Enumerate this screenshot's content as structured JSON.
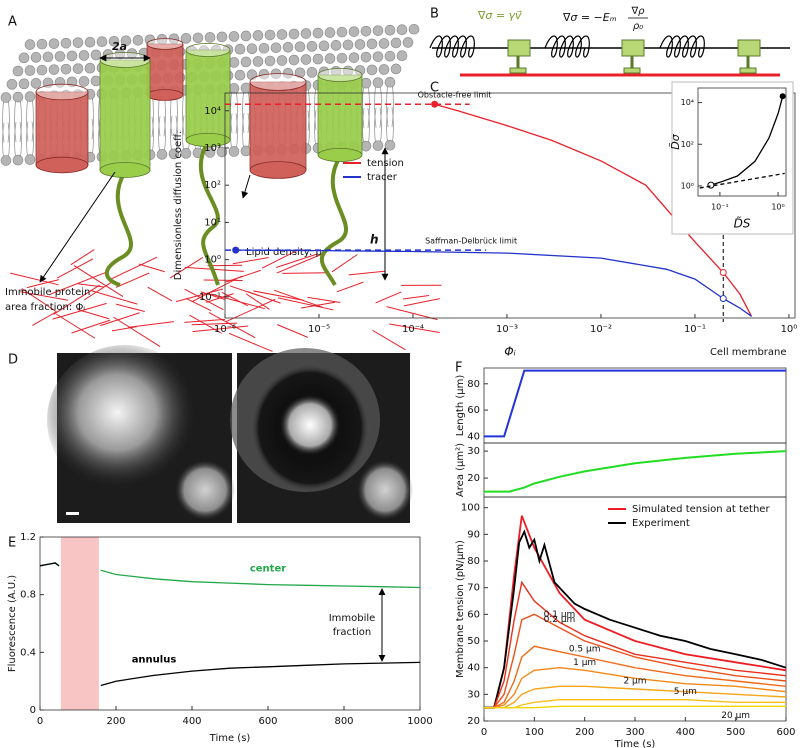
{
  "panels": {
    "A": {
      "label": "A",
      "width_label": "2a",
      "height_label": "h",
      "lipid_label": "Lipid density: ρ",
      "protein_label": [
        "Immobile protein",
        "area fraction: Φᵢ"
      ]
    },
    "B": {
      "label": "B",
      "eq1": "∇σ = γv⃗",
      "eq2_lhs": "∇σ = −Eₘ",
      "eq2_num": "∇ρ",
      "eq2_den": "ρ₀"
    },
    "C": {
      "label": "C"
    },
    "D": {
      "label": "D"
    },
    "E": {
      "label": "E"
    },
    "F": {
      "label": "F"
    }
  },
  "chart_data": [
    {
      "type": "line",
      "xscale": "log",
      "yscale": "log",
      "xlabel": "Φᵢ",
      "ylabel": "Dimensionless diffusion coeff.",
      "xlim": [
        1e-06,
        1.16
      ],
      "ylim": [
        0.027,
        30000
      ],
      "xticks": [
        {
          "value": 1e-06,
          "label": "10⁻⁶"
        },
        {
          "value": 1e-05,
          "label": "10⁻⁵"
        },
        {
          "value": 0.0001,
          "label": "10⁻⁴"
        },
        {
          "value": 0.001,
          "label": "10⁻³"
        },
        {
          "value": 0.01,
          "label": "10⁻²"
        },
        {
          "value": 0.1,
          "label": "10⁻¹"
        },
        {
          "value": 1,
          "label": "10⁰"
        }
      ],
      "yticks": [
        {
          "value": 0.1,
          "label": "10⁻¹"
        },
        {
          "value": 1,
          "label": "10⁰"
        },
        {
          "value": 10,
          "label": "10¹"
        },
        {
          "value": 100,
          "label": "10²"
        },
        {
          "value": 1000,
          "label": "10³"
        },
        {
          "value": 10000,
          "label": "10⁴"
        }
      ],
      "legend": "center-left",
      "series": [
        {
          "name": "tension",
          "color": "#e8202a",
          "x": [
            0.00017,
            0.0003,
            0.001,
            0.003,
            0.01,
            0.03,
            0.1,
            0.2,
            0.3,
            0.4
          ],
          "values": [
            15000,
            10000,
            4000,
            1600,
            450,
            100,
            3,
            0.45,
            0.12,
            0.03
          ]
        },
        {
          "name": "tracer",
          "color": "#2233cc",
          "x": [
            1.3e-06,
            1e-05,
            0.0001,
            0.001,
            0.01,
            0.05,
            0.1,
            0.2,
            0.3,
            0.4
          ],
          "values": [
            1.8,
            1.75,
            1.65,
            1.5,
            1.1,
            0.55,
            0.3,
            0.09,
            0.05,
            0.03
          ]
        }
      ],
      "reference_lines": [
        {
          "text": "Obstacle-free limit",
          "y": 15000,
          "x": [
            1e-06,
            0.0004
          ],
          "color": "#e8202a"
        },
        {
          "text": "Saffman-Delbrück limit",
          "y": 1.8,
          "x": [
            1e-06,
            0.0006
          ],
          "color": "#2233cc"
        }
      ],
      "vline": {
        "text": "Cell membrane",
        "x": 0.2
      }
    },
    {
      "type": "line",
      "xscale": "log",
      "yscale": "log",
      "xlabel": "D̃S",
      "ylabel": "D̃σ",
      "xlim": [
        0.042,
        1.37
      ],
      "ylim": [
        0.33,
        50000
      ],
      "xticks": [
        {
          "value": 0.1,
          "label": "10⁻¹"
        },
        {
          "value": 1,
          "label": "10⁰"
        }
      ],
      "yticks": [
        {
          "value": 1,
          "label": "10⁰"
        },
        {
          "value": 100,
          "label": "10²"
        },
        {
          "value": 10000,
          "label": "10⁴"
        }
      ],
      "series": [
        {
          "color": "#000000",
          "x": [
            0.07,
            0.1,
            0.2,
            0.4,
            0.7,
            1.0,
            1.2
          ],
          "values": [
            1.1,
            1.5,
            3,
            15,
            200,
            3000,
            20000
          ]
        },
        {
          "color": "#000000",
          "dashed": true,
          "x": [
            0.045,
            1.3
          ],
          "values": [
            0.8,
            4
          ]
        }
      ]
    },
    {
      "type": "line",
      "xlabel": "Time (s)",
      "ylabel": "Fluorescence (A.U.)",
      "xlim": [
        0,
        1000
      ],
      "ylim": [
        0,
        1.2
      ],
      "xticks": [
        0,
        200,
        400,
        600,
        800,
        1000
      ],
      "yticks": [
        0,
        0.4,
        0.8,
        1.2
      ],
      "shaded": {
        "x": [
          55,
          155
        ],
        "color": "#f8c4c4"
      },
      "series": [
        {
          "name": "center",
          "color": "#22a84a",
          "x": [
            0,
            20,
            40,
            50,
            100,
            160,
            200,
            300,
            400,
            500,
            600,
            700,
            800,
            900,
            1000
          ],
          "values": [
            1.0,
            1.01,
            1.02,
            1.0,
            null,
            0.97,
            0.94,
            0.91,
            0.89,
            0.88,
            0.87,
            0.865,
            0.86,
            0.855,
            0.85
          ]
        },
        {
          "name": "annulus",
          "color": "#000000",
          "x": [
            0,
            20,
            40,
            50,
            100,
            160,
            200,
            300,
            400,
            500,
            600,
            700,
            800,
            900,
            1000
          ],
          "values": [
            1.0,
            1.01,
            1.02,
            1.0,
            null,
            0.17,
            0.2,
            0.24,
            0.27,
            0.29,
            0.3,
            0.31,
            0.32,
            0.325,
            0.33
          ]
        }
      ],
      "annotation": {
        "text": [
          "Immobile",
          "fraction"
        ]
      }
    },
    {
      "type": "line",
      "ylabel": "Length (µm)",
      "xlim": [
        0,
        600
      ],
      "ylim": [
        35,
        92
      ],
      "yticks": [
        40,
        60,
        80
      ],
      "series": [
        {
          "color": "#2233dd",
          "x": [
            0,
            20,
            40,
            80,
            600
          ],
          "values": [
            40,
            40,
            40,
            90,
            90
          ]
        }
      ]
    },
    {
      "type": "line",
      "ylabel": "Area (µm²)",
      "xlim": [
        0,
        600
      ],
      "ylim": [
        13,
        33
      ],
      "yticks": [
        20,
        30
      ],
      "series": [
        {
          "color": "#22dd22",
          "x": [
            0,
            50,
            80,
            100,
            150,
            200,
            300,
            400,
            500,
            600
          ],
          "values": [
            15,
            15,
            16.5,
            18,
            20.5,
            22.5,
            25.5,
            27.5,
            29,
            30
          ]
        }
      ]
    },
    {
      "type": "line",
      "xlabel": "Time (s)",
      "ylabel": "Membrane tension (pN/µm)",
      "xlim": [
        0,
        600
      ],
      "ylim": [
        20,
        104
      ],
      "xticks": [
        0,
        100,
        200,
        300,
        400,
        500,
        600
      ],
      "yticks": [
        20,
        30,
        40,
        50,
        60,
        70,
        80,
        90,
        100
      ],
      "legend": "upper-right",
      "x": [
        0,
        20,
        40,
        60,
        75,
        100,
        150,
        200,
        300,
        400,
        500,
        600
      ],
      "series": [
        {
          "name": "Simulated tension at tether",
          "color": "#ee1c24",
          "values": [
            25,
            25,
            40,
            75,
            97,
            85,
            68,
            58,
            50,
            45,
            42,
            39
          ]
        },
        {
          "name": "Experiment",
          "color": "#000000",
          "x": [
            0,
            20,
            40,
            60,
            70,
            80,
            90,
            100,
            110,
            120,
            140,
            160,
            180,
            200,
            250,
            300,
            350,
            400,
            450,
            500,
            550,
            600
          ],
          "values": [
            25,
            25,
            40,
            70,
            87,
            91,
            85,
            88,
            80,
            86,
            72,
            68,
            64,
            62,
            58,
            55,
            52,
            50,
            47,
            45,
            43,
            40
          ]
        },
        {
          "label": "0.1 µm",
          "color": "#e8301c",
          "values": [
            25,
            25,
            35,
            58,
            72,
            65,
            57,
            52,
            45,
            42,
            39,
            37
          ]
        },
        {
          "label": "0.2 µm",
          "color": "#ec5018",
          "values": [
            25,
            25,
            30,
            45,
            58,
            60,
            55,
            50,
            44,
            40,
            37,
            35
          ]
        },
        {
          "label": "0.5 µm",
          "color": "#f06a18",
          "values": [
            25,
            25,
            27,
            35,
            44,
            48,
            46,
            44,
            40,
            37,
            35,
            33
          ]
        },
        {
          "label": "1 µm",
          "color": "#f38818",
          "values": [
            25,
            25,
            26,
            30,
            36,
            39,
            40,
            39,
            36,
            34,
            33,
            31
          ]
        },
        {
          "label": "2 µm",
          "color": "#f6a418",
          "values": [
            25,
            25,
            25,
            27,
            30,
            32,
            33,
            33,
            32,
            31,
            30,
            29
          ]
        },
        {
          "label": "5 µm",
          "color": "#f8c018",
          "values": [
            25,
            25,
            25,
            25,
            26,
            27,
            28,
            28,
            28,
            28,
            27,
            27
          ]
        },
        {
          "label": "20 µm",
          "color": "#f2d400",
          "values": [
            25,
            25,
            25,
            25,
            25,
            25,
            25.5,
            25.5,
            25.5,
            25.5,
            25.5,
            25.5
          ]
        }
      ]
    }
  ]
}
